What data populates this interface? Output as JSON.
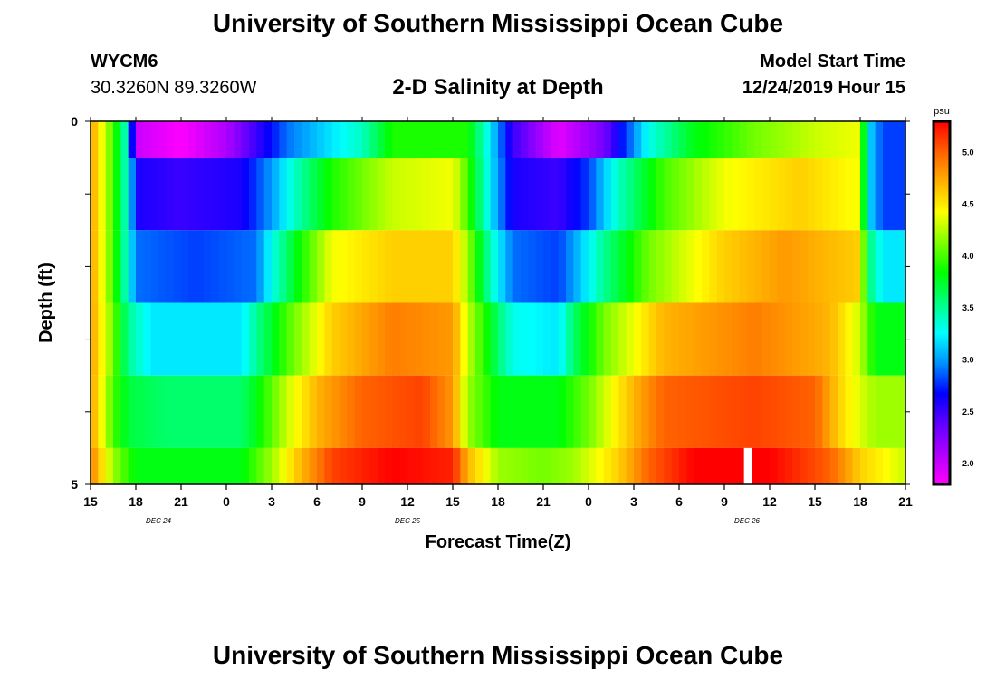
{
  "header": {
    "title": "University of Southern Mississippi Ocean Cube",
    "station_id": "WYCM6",
    "coords": "30.3260N 89.3260W",
    "plot_title": "2-D Salinity at Depth",
    "start_label": "Model Start Time",
    "start_value": "12/24/2019 Hour 15"
  },
  "footer": {
    "title": "University of Southern Mississippi Ocean Cube"
  },
  "chart_data": {
    "type": "heatmap",
    "xlabel": "Forecast Time(Z)",
    "ylabel": "Depth (ft)",
    "x_hours_range": [
      0,
      54
    ],
    "x_tick_labels": [
      "15",
      "18",
      "21",
      "0",
      "3",
      "6",
      "9",
      "12",
      "15",
      "18",
      "21",
      "0",
      "3",
      "6",
      "9",
      "12",
      "15",
      "18",
      "21"
    ],
    "date_labels": [
      {
        "label": "DEC 24",
        "hour": 4.5
      },
      {
        "label": "DEC 25",
        "hour": 21
      },
      {
        "label": "DEC 26",
        "hour": 43.5
      }
    ],
    "y_tick_labels": [
      "0",
      "5"
    ],
    "ylim": [
      0,
      5
    ],
    "colorbar": {
      "unit": "psu",
      "min": 1.8,
      "max": 5.3,
      "ticks": [
        "2.0",
        "2.5",
        "3.0",
        "3.5",
        "4.0",
        "4.5",
        "5.0"
      ],
      "tick_values": [
        2.0,
        2.5,
        3.0,
        3.5,
        4.0,
        4.5,
        5.0
      ],
      "colors": [
        "#ff00ff",
        "#b000ff",
        "#6000ff",
        "#0000ff",
        "#0090ff",
        "#00ffff",
        "#00ff80",
        "#00ff00",
        "#80ff00",
        "#ffff00",
        "#ffb000",
        "#ff6000",
        "#ff0000"
      ]
    },
    "depth_layers": [
      {
        "top": 0,
        "bottom": 0.5,
        "control": [
          [
            0,
            4.8
          ],
          [
            1.5,
            4.0
          ],
          [
            2.5,
            3.3
          ],
          [
            3,
            2.0
          ],
          [
            6,
            1.8
          ],
          [
            9,
            2.1
          ],
          [
            13,
            2.9
          ],
          [
            18,
            3.4
          ],
          [
            20,
            3.9
          ],
          [
            25,
            3.9
          ],
          [
            26.5,
            3.2
          ],
          [
            28,
            2.5
          ],
          [
            31,
            1.9
          ],
          [
            34,
            2.3
          ],
          [
            37,
            3.3
          ],
          [
            40,
            3.8
          ],
          [
            44,
            4.1
          ],
          [
            48,
            4.3
          ],
          [
            51,
            4.4
          ],
          [
            51.5,
            3.2
          ],
          [
            52.5,
            2.8
          ],
          [
            54,
            2.8
          ]
        ]
      },
      {
        "top": 0.5,
        "bottom": 1.5,
        "control": [
          [
            0,
            4.8
          ],
          [
            1.5,
            4.0
          ],
          [
            2.5,
            3.3
          ],
          [
            3,
            2.6
          ],
          [
            6,
            2.5
          ],
          [
            10,
            2.6
          ],
          [
            12,
            3.0
          ],
          [
            14,
            3.5
          ],
          [
            16,
            3.9
          ],
          [
            20,
            4.3
          ],
          [
            24,
            4.4
          ],
          [
            25,
            4.0
          ],
          [
            26.5,
            3.2
          ],
          [
            28,
            2.6
          ],
          [
            31,
            2.5
          ],
          [
            33,
            2.8
          ],
          [
            35,
            3.4
          ],
          [
            38,
            4.0
          ],
          [
            42,
            4.4
          ],
          [
            47,
            4.6
          ],
          [
            51,
            4.4
          ],
          [
            51.5,
            3.2
          ],
          [
            52.5,
            2.8
          ],
          [
            54,
            2.8
          ]
        ]
      },
      {
        "top": 1.5,
        "bottom": 2.5,
        "control": [
          [
            0,
            4.8
          ],
          [
            1.5,
            4.0
          ],
          [
            2.5,
            3.3
          ],
          [
            3,
            2.9
          ],
          [
            7,
            2.8
          ],
          [
            11,
            2.9
          ],
          [
            12,
            3.3
          ],
          [
            14,
            3.9
          ],
          [
            16,
            4.4
          ],
          [
            20,
            4.6
          ],
          [
            24,
            4.6
          ],
          [
            25,
            4.2
          ],
          [
            26.5,
            3.4
          ],
          [
            28,
            2.9
          ],
          [
            31,
            2.8
          ],
          [
            32,
            3.0
          ],
          [
            34,
            3.5
          ],
          [
            37,
            4.1
          ],
          [
            42,
            4.6
          ],
          [
            46,
            4.8
          ],
          [
            51,
            4.6
          ],
          [
            51.5,
            3.6
          ],
          [
            52.5,
            3.2
          ],
          [
            54,
            3.2
          ]
        ]
      },
      {
        "top": 2.5,
        "bottom": 3.5,
        "control": [
          [
            0,
            4.8
          ],
          [
            1.5,
            4.1
          ],
          [
            2.5,
            3.5
          ],
          [
            4,
            3.2
          ],
          [
            10,
            3.2
          ],
          [
            11,
            3.5
          ],
          [
            13,
            4.0
          ],
          [
            16,
            4.6
          ],
          [
            20,
            4.9
          ],
          [
            24,
            4.8
          ],
          [
            25,
            4.3
          ],
          [
            27,
            3.6
          ],
          [
            28,
            3.3
          ],
          [
            31,
            3.2
          ],
          [
            32,
            3.6
          ],
          [
            34,
            4.1
          ],
          [
            38,
            4.7
          ],
          [
            44,
            4.9
          ],
          [
            49,
            4.7
          ],
          [
            51,
            4.3
          ],
          [
            52,
            3.8
          ],
          [
            54,
            3.8
          ]
        ]
      },
      {
        "top": 3.5,
        "bottom": 4.5,
        "control": [
          [
            0,
            4.8
          ],
          [
            1.5,
            4.0
          ],
          [
            2.5,
            3.7
          ],
          [
            5,
            3.6
          ],
          [
            10,
            3.6
          ],
          [
            11,
            3.8
          ],
          [
            13,
            4.3
          ],
          [
            15,
            4.7
          ],
          [
            18,
            5.0
          ],
          [
            22,
            5.1
          ],
          [
            24,
            4.8
          ],
          [
            25,
            4.2
          ],
          [
            27,
            3.8
          ],
          [
            29,
            3.8
          ],
          [
            31,
            3.8
          ],
          [
            33,
            4.1
          ],
          [
            36,
            4.7
          ],
          [
            38,
            5.0
          ],
          [
            44,
            5.1
          ],
          [
            48,
            5.0
          ],
          [
            50,
            4.5
          ],
          [
            52,
            4.2
          ],
          [
            54,
            4.2
          ]
        ]
      },
      {
        "top": 4.5,
        "bottom": 5.0,
        "control": [
          [
            0,
            4.9
          ],
          [
            1.5,
            4.2
          ],
          [
            3,
            3.8
          ],
          [
            10,
            3.8
          ],
          [
            12,
            4.2
          ],
          [
            14,
            4.7
          ],
          [
            16,
            5.1
          ],
          [
            20,
            5.3
          ],
          [
            24,
            5.2
          ],
          [
            25,
            4.7
          ],
          [
            27,
            4.2
          ],
          [
            30,
            4.1
          ],
          [
            32,
            4.2
          ],
          [
            35,
            4.6
          ],
          [
            37,
            5.0
          ],
          [
            40,
            5.3
          ],
          [
            42,
            5.3
          ],
          [
            45,
            5.3
          ],
          [
            49,
            5.0
          ],
          [
            51,
            4.6
          ],
          [
            54,
            4.3
          ]
        ]
      }
    ],
    "missing_column": {
      "hour_start": 43.3,
      "hour_end": 43.8,
      "depth_top": 4.5,
      "depth_bottom": 5.0
    }
  }
}
